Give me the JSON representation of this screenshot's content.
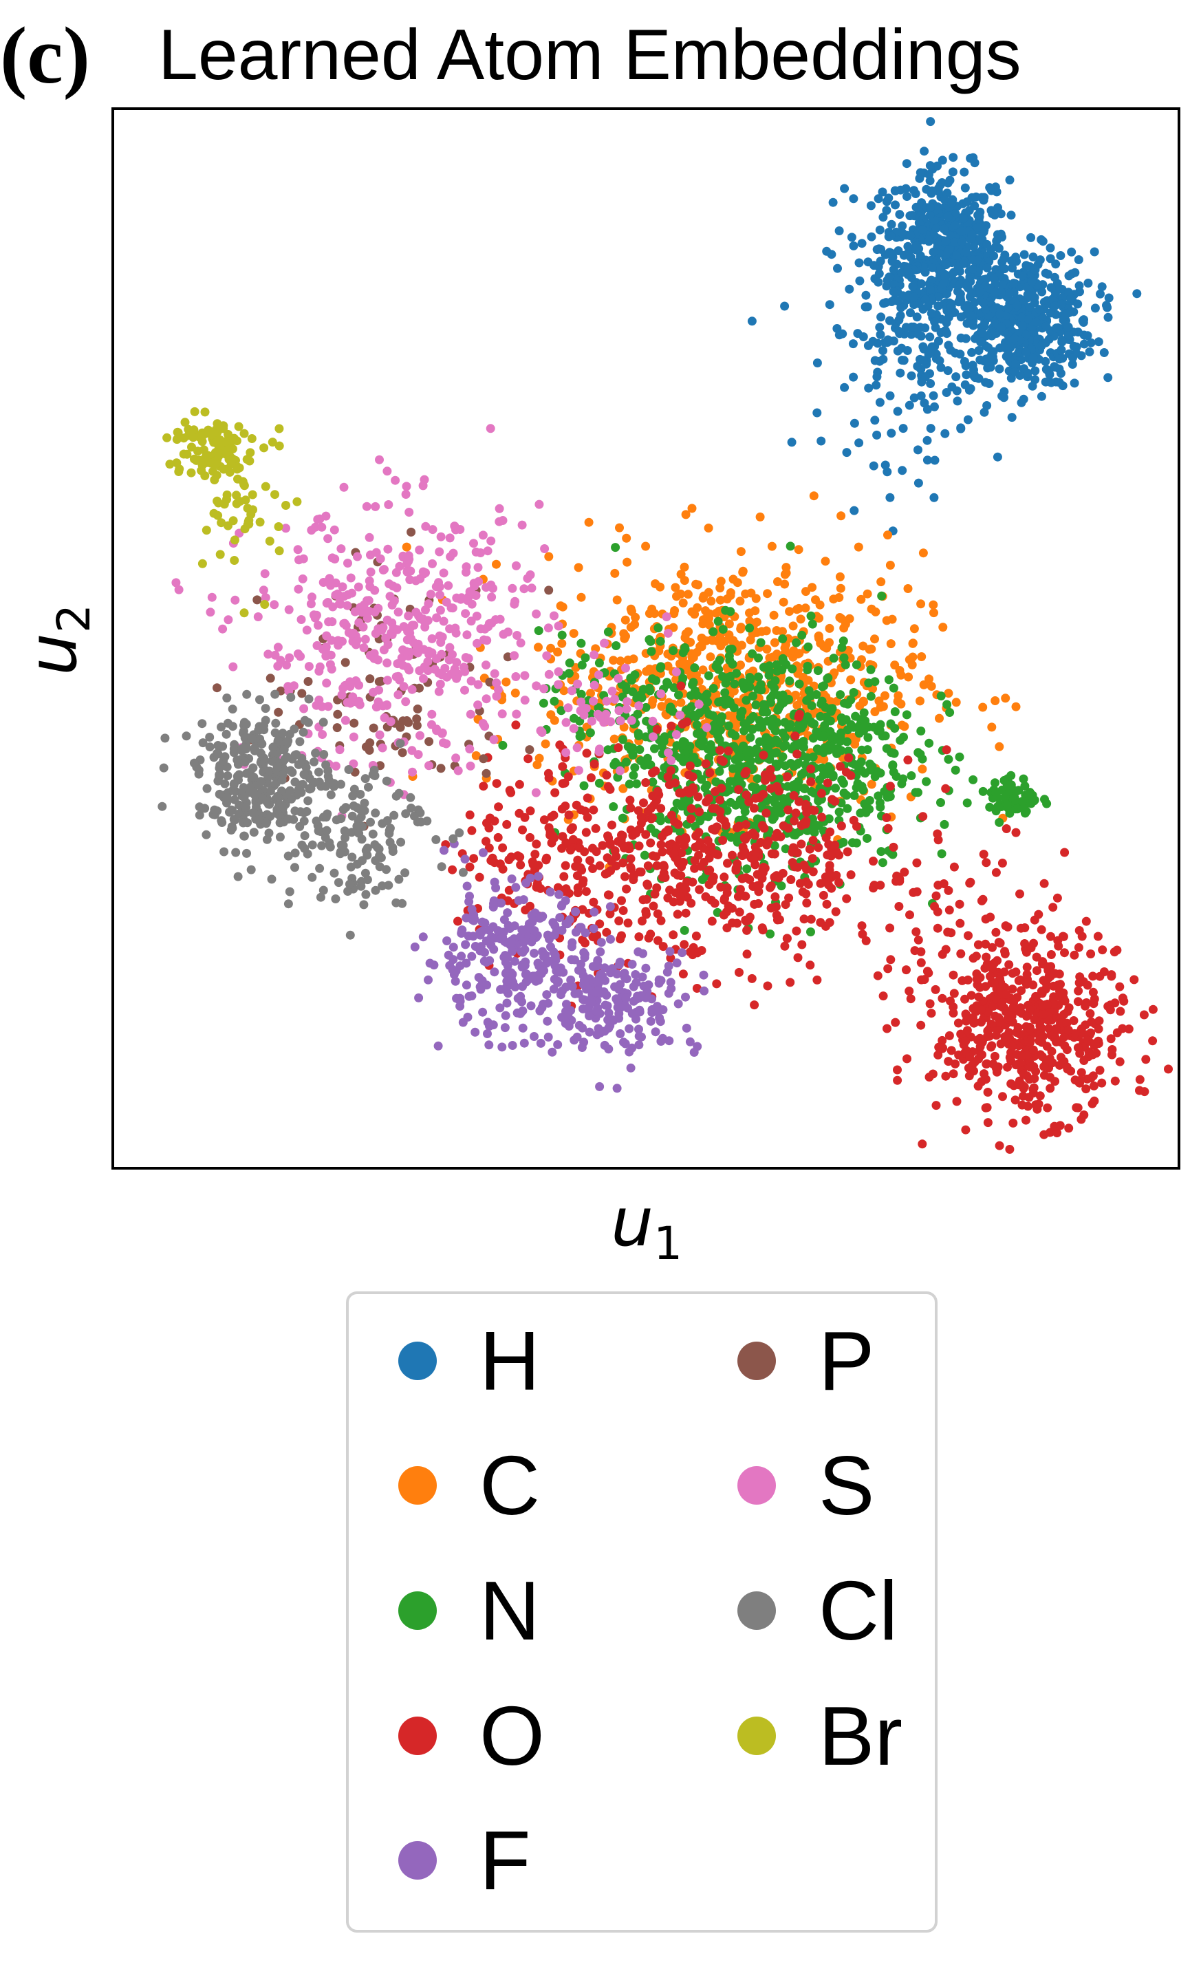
{
  "panel_label": "(c)",
  "chart_data": {
    "type": "scatter",
    "title": "Learned Atom Embeddings",
    "xlabel_base": "u",
    "xlabel_sub": "1",
    "ylabel_base": "u",
    "ylabel_sub": "2",
    "xlim": [
      0,
      100
    ],
    "ylim": [
      0,
      100
    ],
    "ticks": "none",
    "grid": false,
    "legend_placement": "below plot",
    "series": [
      {
        "name": "H",
        "color": "#1f77b4",
        "clusters": [
          {
            "cx": 78.0,
            "cy": 87.0,
            "sx": 3.0,
            "sy": 3.6,
            "n": 420
          },
          {
            "cx": 85.0,
            "cy": 80.0,
            "sx": 3.5,
            "sy": 3.2,
            "n": 480
          },
          {
            "cx": 75.0,
            "cy": 79.0,
            "sx": 4.0,
            "sy": 6.0,
            "n": 220
          }
        ]
      },
      {
        "name": "C",
        "color": "#ff7f0e",
        "clusters": [
          {
            "cx": 58.0,
            "cy": 46.0,
            "sx": 9.0,
            "sy": 6.0,
            "n": 700
          }
        ]
      },
      {
        "name": "N",
        "color": "#2ca02c",
        "clusters": [
          {
            "cx": 61.0,
            "cy": 39.0,
            "sx": 7.0,
            "sy": 5.5,
            "n": 800
          },
          {
            "cx": 84.5,
            "cy": 35.0,
            "sx": 1.2,
            "sy": 1.0,
            "n": 60
          },
          {
            "cx": 48.0,
            "cy": 43.0,
            "sx": 4.0,
            "sy": 3.5,
            "n": 80
          }
        ]
      },
      {
        "name": "O",
        "color": "#d62728",
        "clusters": [
          {
            "cx": 57.0,
            "cy": 29.0,
            "sx": 9.0,
            "sy": 5.0,
            "n": 500
          },
          {
            "cx": 86.0,
            "cy": 13.0,
            "sx": 4.5,
            "sy": 4.0,
            "n": 500
          },
          {
            "cx": 42.0,
            "cy": 30.0,
            "sx": 5.0,
            "sy": 5.0,
            "n": 150
          },
          {
            "cx": 80.0,
            "cy": 22.0,
            "sx": 6.0,
            "sy": 5.0,
            "n": 80
          }
        ]
      },
      {
        "name": "F",
        "color": "#9467bd",
        "clusters": [
          {
            "cx": 37.0,
            "cy": 20.0,
            "sx": 4.0,
            "sy": 3.5,
            "n": 250
          },
          {
            "cx": 47.0,
            "cy": 16.0,
            "sx": 4.0,
            "sy": 2.5,
            "n": 200
          }
        ]
      },
      {
        "name": "P",
        "color": "#8c564b",
        "clusters": [
          {
            "cx": 26.0,
            "cy": 45.0,
            "sx": 6.0,
            "sy": 5.5,
            "n": 90
          }
        ]
      },
      {
        "name": "S",
        "color": "#e377c2",
        "clusters": [
          {
            "cx": 27.0,
            "cy": 50.0,
            "sx": 7.0,
            "sy": 6.0,
            "n": 450
          },
          {
            "cx": 47.0,
            "cy": 43.0,
            "sx": 4.0,
            "sy": 2.5,
            "n": 50
          }
        ]
      },
      {
        "name": "Cl",
        "color": "#7f7f7f",
        "clusters": [
          {
            "cx": 14.0,
            "cy": 37.0,
            "sx": 3.0,
            "sy": 3.0,
            "n": 300
          },
          {
            "cx": 22.0,
            "cy": 32.0,
            "sx": 4.0,
            "sy": 3.5,
            "n": 150
          }
        ]
      },
      {
        "name": "Br",
        "color": "#bcbd22",
        "clusters": [
          {
            "cx": 9.0,
            "cy": 68.0,
            "sx": 2.0,
            "sy": 1.5,
            "n": 100
          },
          {
            "cx": 13.0,
            "cy": 62.0,
            "sx": 2.0,
            "sy": 3.5,
            "n": 50
          }
        ]
      }
    ]
  },
  "legend": {
    "items": [
      {
        "label": "H",
        "color": "#1f77b4"
      },
      {
        "label": "C",
        "color": "#ff7f0e"
      },
      {
        "label": "N",
        "color": "#2ca02c"
      },
      {
        "label": "O",
        "color": "#d62728"
      },
      {
        "label": "F",
        "color": "#9467bd"
      },
      {
        "label": "P",
        "color": "#8c564b"
      },
      {
        "label": "S",
        "color": "#e377c2"
      },
      {
        "label": "Cl",
        "color": "#7f7f7f"
      },
      {
        "label": "Br",
        "color": "#bcbd22"
      }
    ]
  }
}
